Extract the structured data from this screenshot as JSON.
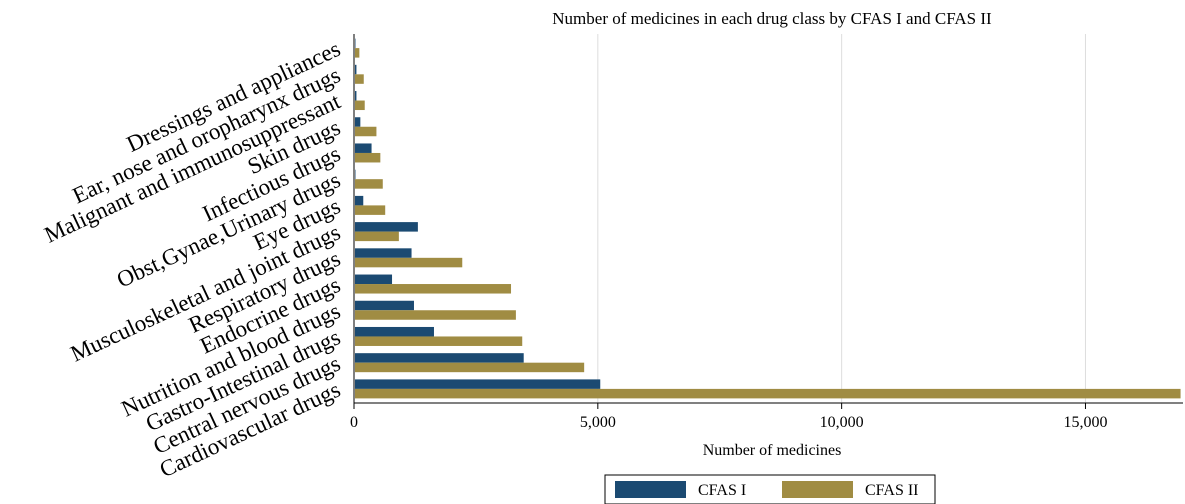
{
  "chart_data": {
    "type": "bar",
    "orientation": "horizontal",
    "title": "Number of medicines in each drug class by CFAS I and CFAS II",
    "xlabel": "Number of medicines",
    "ylabel": "",
    "xlim": [
      0,
      17000
    ],
    "x_ticks": [
      0,
      5000,
      10000,
      15000
    ],
    "x_tick_labels": [
      "0",
      "5,000",
      "10,000",
      "15,000"
    ],
    "grid": true,
    "legend_position": "bottom",
    "categories": [
      "Cardiovascular drugs",
      "Central nervous drugs",
      "Gastro-Intestinal drugs",
      "Nutrition and blood drugs",
      "Endocrine drugs",
      "Respiratory drugs",
      "Musculoskeletal and joint drugs",
      "Eye drugs",
      "Obst,Gynae,Urinary drugs",
      "Infectious drugs",
      "Skin drugs",
      "Malignant and immunosuppressant",
      "Ear, nose and oropharynx drugs",
      "Dressings and appliances"
    ],
    "series": [
      {
        "name": "CFAS I",
        "color": "#1b4a72",
        "values": [
          5050,
          3480,
          1640,
          1230,
          780,
          1180,
          1310,
          190,
          30,
          360,
          130,
          50,
          50,
          30
        ]
      },
      {
        "name": "CFAS II",
        "color": "#a08c43",
        "values": [
          16950,
          4720,
          3450,
          3320,
          3220,
          2220,
          920,
          640,
          590,
          540,
          460,
          220,
          200,
          110
        ]
      }
    ]
  }
}
